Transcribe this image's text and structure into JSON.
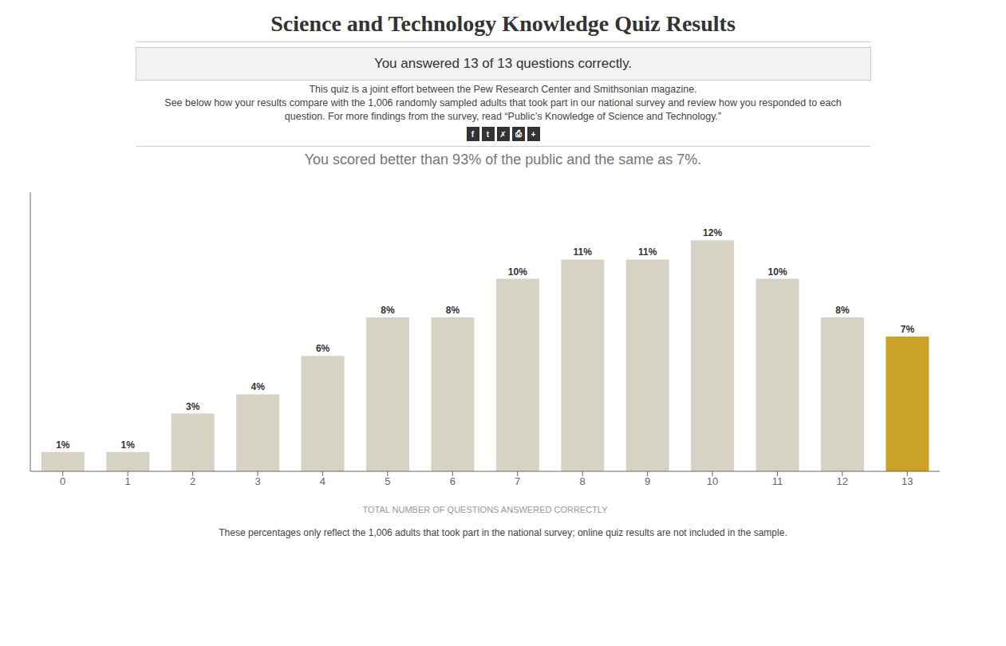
{
  "chart_data": {
    "type": "bar",
    "title": "Science and Technology Knowledge Quiz Results",
    "annotations": [
      "You answered 13 of 13 questions correctly.",
      "This quiz is a joint effort between the Pew Research Center and Smithsonian magazine.",
      "See below how your results compare with the 1,006 randomly sampled adults that took part in our national survey and review how you responded to each",
      "question. For more findings from the survey, read “Public’s Knowledge of Science and Technology.”",
      [
        "f",
        "t",
        "✗",
        "⎙",
        "+"
      ],
      "You scored better than 93% of the public and the same as 7%.",
      "These percentages only reflect the 1,006 adults that took part in the national survey; online quiz results are not included in the sample."
    ],
    "categories": [
      0,
      1,
      2,
      3,
      4,
      5,
      6,
      7,
      8,
      9,
      10,
      11,
      12,
      13
    ],
    "values": [
      1,
      1,
      3,
      4,
      6,
      8,
      8,
      10,
      11,
      11,
      12,
      10,
      8,
      7
    ],
    "value_labels": [
      "1%",
      "1%",
      "3%",
      "4%",
      "6%",
      "8%",
      "8%",
      "10%",
      "11%",
      "11%",
      "12%",
      "10%",
      "8%",
      "7%"
    ],
    "data_labels": true,
    "colors": [
      "#d6d2c4",
      "#d6d2c4",
      "#d6d2c4",
      "#d6d2c4",
      "#d6d2c4",
      "#d6d2c4",
      "#d6d2c4",
      "#d6d2c4",
      "#d6d2c4",
      "#d6d2c4",
      "#d6d2c4",
      "#d6d2c4",
      "#d6d2c4",
      "#c9a227"
    ],
    "xlabel": "TOTAL NUMBER OF QUESTIONS ANSWERED CORRECTLY",
    "ylim": [
      0,
      14.5
    ],
    "tick_labels": "x",
    "grid": false
  }
}
